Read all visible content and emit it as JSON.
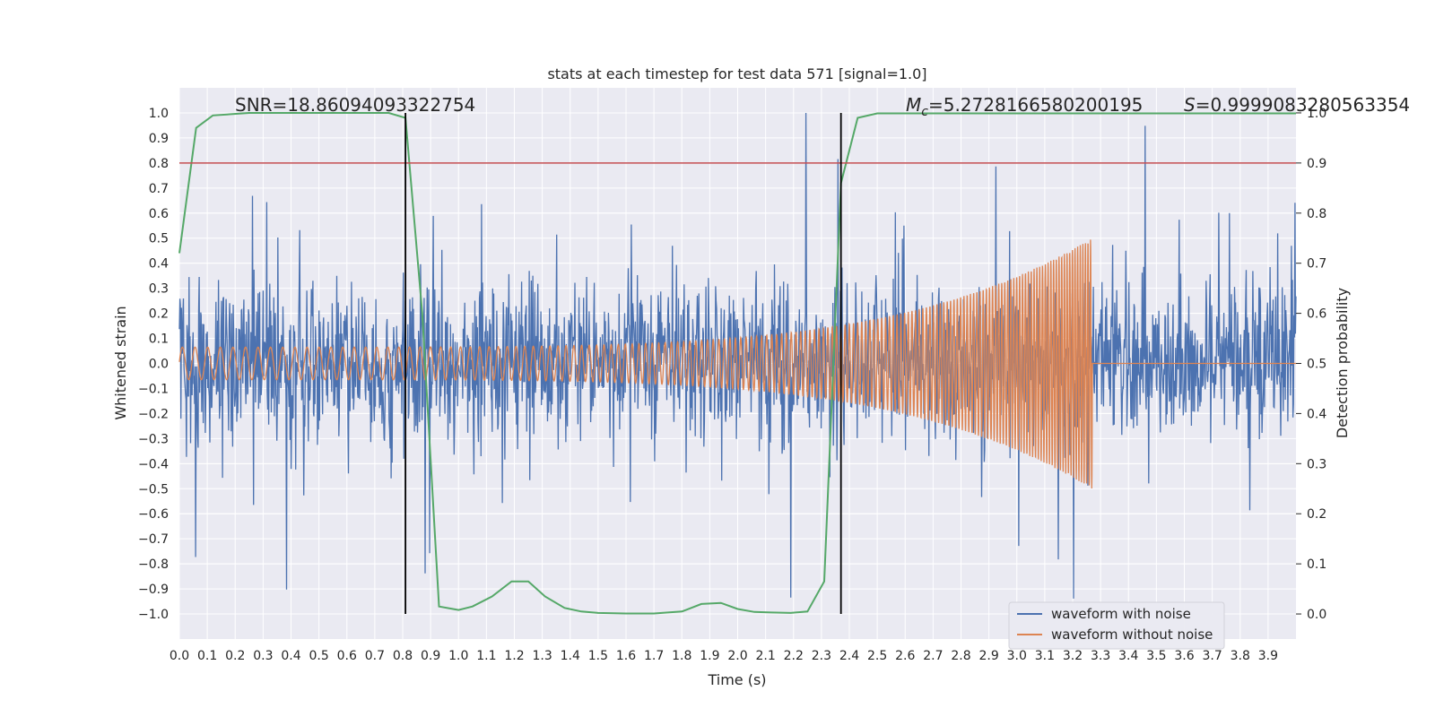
{
  "chart_data": {
    "type": "line",
    "title": "stats at each timestep for test data 571 [signal=1.0]",
    "xlabel": "Time (s)",
    "ylabel": "Whitened strain",
    "y2label": "Detection probability",
    "xlim": [
      0.0,
      4.0
    ],
    "ylim": [
      -1.1,
      1.1
    ],
    "y2lim": [
      -0.05,
      1.05
    ],
    "xticks": [
      "0.0",
      "0.1",
      "0.2",
      "0.3",
      "0.4",
      "0.5",
      "0.6",
      "0.7",
      "0.8",
      "0.9",
      "1.0",
      "1.1",
      "1.2",
      "1.3",
      "1.4",
      "1.5",
      "1.6",
      "1.7",
      "1.8",
      "1.9",
      "2.0",
      "2.1",
      "2.2",
      "2.3",
      "2.4",
      "2.5",
      "2.6",
      "2.7",
      "2.8",
      "2.9",
      "3.0",
      "3.1",
      "3.2",
      "3.3",
      "3.4",
      "3.5",
      "3.6",
      "3.7",
      "3.8",
      "3.9"
    ],
    "yticks": [
      "1.0",
      "0.9",
      "0.8",
      "0.7",
      "0.6",
      "0.5",
      "0.4",
      "0.3",
      "0.2",
      "0.1",
      "0.0",
      "−0.1",
      "−0.2",
      "−0.3",
      "−0.4",
      "−0.5",
      "−0.6",
      "−0.7",
      "−0.8",
      "−0.9",
      "−1.0"
    ],
    "y2ticks": [
      "1.0",
      "0.9",
      "0.8",
      "0.7",
      "0.6",
      "0.5",
      "0.4",
      "0.3",
      "0.2",
      "0.1",
      "0.0"
    ],
    "annotations": {
      "snr": "SNR=18.86094093322754",
      "mc_symbol": "M",
      "mc_sub": "c",
      "mc_value": "=5.2728166580200195",
      "s_symbol": "S",
      "s_value": "=0.9999083280563354"
    },
    "legend": {
      "position": "lower-right",
      "entries": [
        "waveform with noise",
        "waveform without noise"
      ]
    },
    "threshold_y2": 0.9,
    "vertical_lines_x": [
      0.81,
      2.37
    ],
    "series": [
      {
        "name": "waveform with noise",
        "color": "#4c72b0",
        "description_range": "noise roughly between -1.0 and 1.0"
      },
      {
        "name": "waveform without noise",
        "color": "#dd8452",
        "chirp": {
          "start_x": 0.0,
          "end_x": 3.27,
          "amp_start": 0.065,
          "amp_end": 0.5,
          "f_start": 22,
          "f_end": 110
        }
      },
      {
        "name": "detection probability",
        "color": "#55a868",
        "x": [
          0.0,
          0.06,
          0.12,
          0.25,
          0.5,
          0.75,
          0.81,
          0.87,
          0.93,
          1.0,
          1.05,
          1.12,
          1.19,
          1.25,
          1.31,
          1.38,
          1.44,
          1.5,
          1.6,
          1.7,
          1.8,
          1.87,
          1.94,
          2.0,
          2.06,
          2.12,
          2.19,
          2.25,
          2.31,
          2.37,
          2.43,
          2.5,
          3.0,
          3.5,
          4.0
        ],
        "y": [
          0.72,
          0.97,
          0.995,
          1.0,
          1.0,
          1.0,
          0.99,
          0.6,
          0.015,
          0.008,
          0.015,
          0.035,
          0.065,
          0.065,
          0.035,
          0.012,
          0.005,
          0.002,
          0.001,
          0.001,
          0.005,
          0.02,
          0.022,
          0.01,
          0.004,
          0.003,
          0.002,
          0.005,
          0.065,
          0.86,
          0.99,
          0.999,
          0.999,
          0.999,
          0.999
        ]
      }
    ]
  },
  "colors": {
    "background": "#eaeaf2",
    "grid": "#ffffff",
    "threshold": "#c44e52",
    "vline": "#000000"
  }
}
